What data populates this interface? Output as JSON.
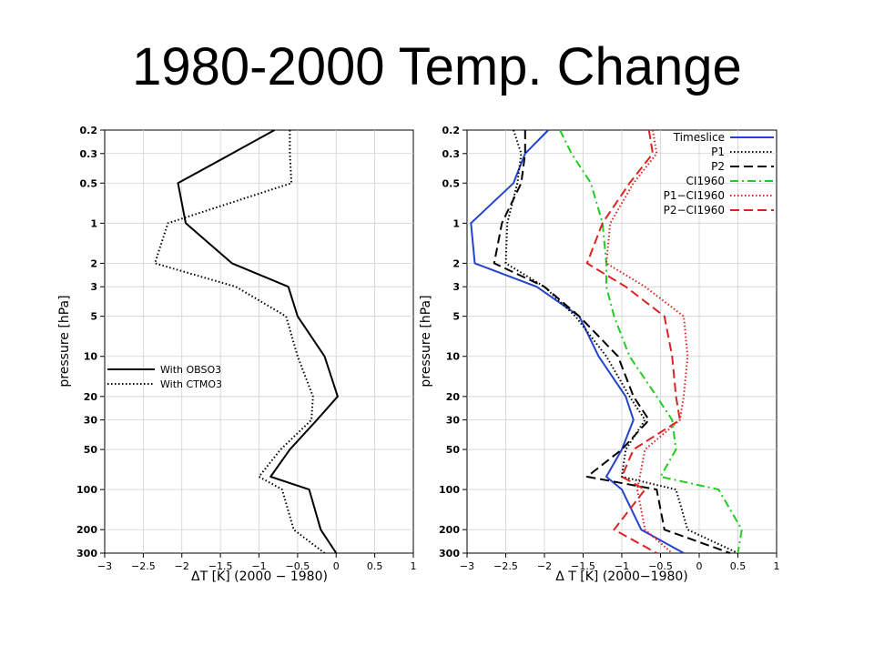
{
  "slide": {
    "title": "1980-2000 Temp. Change"
  },
  "chart_data": [
    {
      "type": "line",
      "title": "",
      "xlabel": "ΔT [K] (2000 − 1980)",
      "ylabel": "pressure [hPa]",
      "xlim": [
        -3,
        1
      ],
      "ylim": [
        300,
        0.2
      ],
      "yscale": "log",
      "grid": true,
      "legend_position": "lower-left",
      "x_ticks": [
        -3,
        -2.5,
        -2,
        -1.5,
        -1,
        -0.5,
        0,
        0.5,
        1
      ],
      "x_tick_labels": [
        "−3",
        "−2.5",
        "−2",
        "−1.5",
        "−1",
        "−0.5",
        "0",
        "0.5",
        "1"
      ],
      "y_ticks": [
        0.2,
        0.3,
        0.5,
        1,
        2,
        3,
        5,
        10,
        20,
        30,
        50,
        100,
        200,
        300
      ],
      "y_tick_labels": [
        "0.2",
        "0.3",
        "0.5",
        "1",
        "2",
        "3",
        "5",
        "10",
        "20",
        "30",
        "50",
        "100",
        "200",
        "300"
      ],
      "series": [
        {
          "name": "With OBSO3",
          "color": "#000000",
          "dash": "solid",
          "points": [
            [
              -0.8,
              0.2
            ],
            [
              -1.35,
              0.3
            ],
            [
              -2.05,
              0.5
            ],
            [
              -1.95,
              1
            ],
            [
              -1.35,
              2
            ],
            [
              -0.62,
              3
            ],
            [
              -0.5,
              5
            ],
            [
              -0.15,
              10
            ],
            [
              0.02,
              20
            ],
            [
              -0.25,
              30
            ],
            [
              -0.6,
              50
            ],
            [
              -0.85,
              80
            ],
            [
              -0.35,
              100
            ],
            [
              -0.2,
              200
            ],
            [
              0.0,
              300
            ]
          ]
        },
        {
          "name": "With CTMO3",
          "color": "#000000",
          "dash": "dotted",
          "points": [
            [
              -0.6,
              0.2
            ],
            [
              -0.6,
              0.3
            ],
            [
              -0.58,
              0.5
            ],
            [
              -2.18,
              1
            ],
            [
              -2.35,
              2
            ],
            [
              -1.3,
              3
            ],
            [
              -0.65,
              5
            ],
            [
              -0.5,
              10
            ],
            [
              -0.3,
              20
            ],
            [
              -0.32,
              30
            ],
            [
              -0.72,
              50
            ],
            [
              -1.0,
              80
            ],
            [
              -0.7,
              100
            ],
            [
              -0.55,
              200
            ],
            [
              -0.15,
              300
            ]
          ]
        }
      ]
    },
    {
      "type": "line",
      "title": "",
      "xlabel": "Δ T [K] (2000−1980)",
      "ylabel": "pressure [hPa]",
      "xlim": [
        -3,
        1
      ],
      "ylim": [
        300,
        0.2
      ],
      "yscale": "log",
      "grid": true,
      "legend_position": "top-right",
      "x_ticks": [
        -3,
        -2.5,
        -2,
        -1.5,
        -1,
        -0.5,
        0,
        0.5,
        1
      ],
      "x_tick_labels": [
        "−3",
        "−2.5",
        "−2",
        "−1.5",
        "−1",
        "−0.5",
        "0",
        "0.5",
        "1"
      ],
      "y_ticks": [
        0.2,
        0.3,
        0.5,
        1,
        2,
        3,
        5,
        10,
        20,
        30,
        50,
        100,
        200,
        300
      ],
      "y_tick_labels": [
        "0.2",
        "0.3",
        "0.5",
        "1",
        "2",
        "3",
        "5",
        "10",
        "20",
        "30",
        "50",
        "100",
        "200",
        "300"
      ],
      "series": [
        {
          "name": "Timeslice",
          "color": "#2244cc",
          "dash": "solid",
          "points": [
            [
              -1.95,
              0.2
            ],
            [
              -2.25,
              0.3
            ],
            [
              -2.4,
              0.5
            ],
            [
              -2.95,
              1
            ],
            [
              -2.9,
              2
            ],
            [
              -2.1,
              3
            ],
            [
              -1.55,
              5
            ],
            [
              -1.3,
              10
            ],
            [
              -0.95,
              20
            ],
            [
              -0.85,
              30
            ],
            [
              -1.0,
              50
            ],
            [
              -1.2,
              80
            ],
            [
              -1.0,
              100
            ],
            [
              -0.75,
              200
            ],
            [
              -0.2,
              300
            ]
          ]
        },
        {
          "name": "P1",
          "color": "#000000",
          "dash": "dotted",
          "points": [
            [
              -2.4,
              0.2
            ],
            [
              -2.3,
              0.3
            ],
            [
              -2.35,
              0.5
            ],
            [
              -2.48,
              1
            ],
            [
              -2.5,
              2
            ],
            [
              -2.0,
              3
            ],
            [
              -1.6,
              5
            ],
            [
              -1.2,
              10
            ],
            [
              -0.9,
              20
            ],
            [
              -0.7,
              30
            ],
            [
              -0.95,
              50
            ],
            [
              -1.0,
              80
            ],
            [
              -0.3,
              100
            ],
            [
              -0.15,
              200
            ],
            [
              0.5,
              300
            ]
          ]
        },
        {
          "name": "P2",
          "color": "#000000",
          "dash": "dashed",
          "points": [
            [
              -2.25,
              0.2
            ],
            [
              -2.25,
              0.3
            ],
            [
              -2.3,
              0.5
            ],
            [
              -2.55,
              1
            ],
            [
              -2.65,
              2
            ],
            [
              -2.0,
              3
            ],
            [
              -1.55,
              5
            ],
            [
              -1.05,
              10
            ],
            [
              -0.85,
              20
            ],
            [
              -0.65,
              30
            ],
            [
              -1.0,
              50
            ],
            [
              -1.45,
              80
            ],
            [
              -0.55,
              100
            ],
            [
              -0.45,
              200
            ],
            [
              0.4,
              300
            ]
          ]
        },
        {
          "name": "CI1960",
          "color": "#22cc22",
          "dash": "dashdot",
          "points": [
            [
              -1.8,
              0.2
            ],
            [
              -1.65,
              0.3
            ],
            [
              -1.4,
              0.5
            ],
            [
              -1.25,
              1
            ],
            [
              -1.2,
              2
            ],
            [
              -1.2,
              3
            ],
            [
              -1.1,
              5
            ],
            [
              -0.9,
              10
            ],
            [
              -0.55,
              20
            ],
            [
              -0.35,
              30
            ],
            [
              -0.3,
              50
            ],
            [
              -0.5,
              80
            ],
            [
              0.25,
              100
            ],
            [
              0.55,
              200
            ],
            [
              0.5,
              300
            ]
          ]
        },
        {
          "name": "P1−CI1960",
          "color": "#dd2222",
          "dash": "dotted",
          "points": [
            [
              -0.6,
              0.2
            ],
            [
              -0.55,
              0.3
            ],
            [
              -0.85,
              0.5
            ],
            [
              -1.15,
              1
            ],
            [
              -1.2,
              2
            ],
            [
              -0.7,
              3
            ],
            [
              -0.2,
              5
            ],
            [
              -0.15,
              10
            ],
            [
              -0.2,
              20
            ],
            [
              -0.25,
              30
            ],
            [
              -0.7,
              50
            ],
            [
              -0.8,
              100
            ],
            [
              -0.7,
              200
            ],
            [
              -0.35,
              300
            ]
          ]
        },
        {
          "name": "P2−CI1960",
          "color": "#dd2222",
          "dash": "dashed",
          "points": [
            [
              -0.65,
              0.2
            ],
            [
              -0.6,
              0.3
            ],
            [
              -0.9,
              0.5
            ],
            [
              -1.25,
              1
            ],
            [
              -1.45,
              2
            ],
            [
              -0.95,
              3
            ],
            [
              -0.45,
              5
            ],
            [
              -0.35,
              10
            ],
            [
              -0.3,
              20
            ],
            [
              -0.25,
              30
            ],
            [
              -0.85,
              50
            ],
            [
              -1.0,
              80
            ],
            [
              -0.7,
              100
            ],
            [
              -1.1,
              200
            ],
            [
              -0.55,
              300
            ]
          ]
        }
      ]
    }
  ]
}
